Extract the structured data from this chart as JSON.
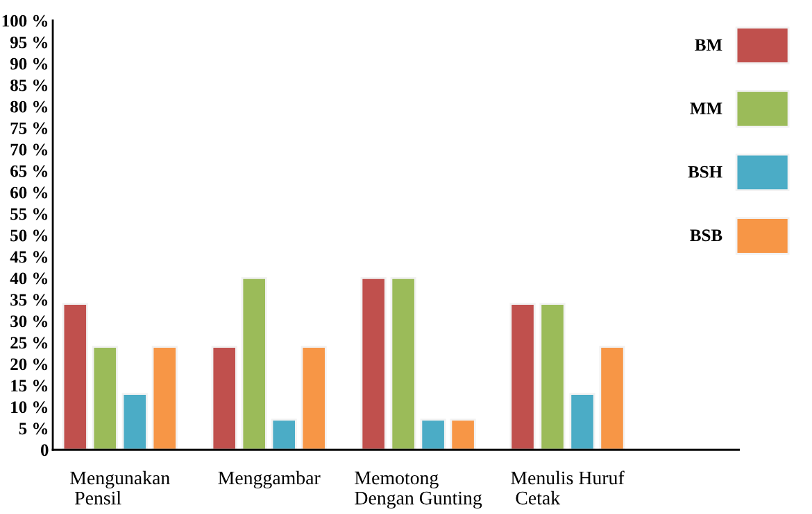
{
  "chart_data": {
    "type": "bar",
    "categories": [
      "Mengunakan\n Pensil",
      "Menggambar",
      "Memotong\nDengan Gunting",
      "Menulis Huruf\n Cetak"
    ],
    "series": [
      {
        "name": "BM",
        "color": "#c0504d",
        "values": [
          34,
          24,
          40,
          34
        ]
      },
      {
        "name": "MM",
        "color": "#9bbb59",
        "values": [
          24,
          40,
          40,
          34
        ]
      },
      {
        "name": "BSH",
        "color": "#4bacc6",
        "values": [
          13,
          7,
          7,
          13
        ]
      },
      {
        "name": "BSB",
        "color": "#f79646",
        "values": [
          24,
          24,
          7,
          24
        ]
      }
    ],
    "ylim": [
      0,
      100
    ],
    "yticks": [
      {
        "value": 0,
        "label": "0"
      },
      {
        "value": 5,
        "label": "5 %"
      },
      {
        "value": 10,
        "label": "10 %"
      },
      {
        "value": 15,
        "label": "15 %"
      },
      {
        "value": 20,
        "label": "20 %"
      },
      {
        "value": 25,
        "label": "25 %"
      },
      {
        "value": 30,
        "label": "30 %"
      },
      {
        "value": 35,
        "label": "35 %"
      },
      {
        "value": 40,
        "label": "40 %"
      },
      {
        "value": 45,
        "label": "45 %"
      },
      {
        "value": 50,
        "label": "50 %"
      },
      {
        "value": 55,
        "label": "55 %"
      },
      {
        "value": 60,
        "label": "60 %"
      },
      {
        "value": 65,
        "label": "65 %"
      },
      {
        "value": 70,
        "label": "70 %"
      },
      {
        "value": 75,
        "label": "75 %"
      },
      {
        "value": 80,
        "label": "80 %"
      },
      {
        "value": 85,
        "label": "85 %"
      },
      {
        "value": 90,
        "label": "90 %"
      },
      {
        "value": 95,
        "label": "95 %"
      },
      {
        "value": 100,
        "label": "100 %"
      }
    ],
    "grid": false,
    "legend": "top right"
  }
}
